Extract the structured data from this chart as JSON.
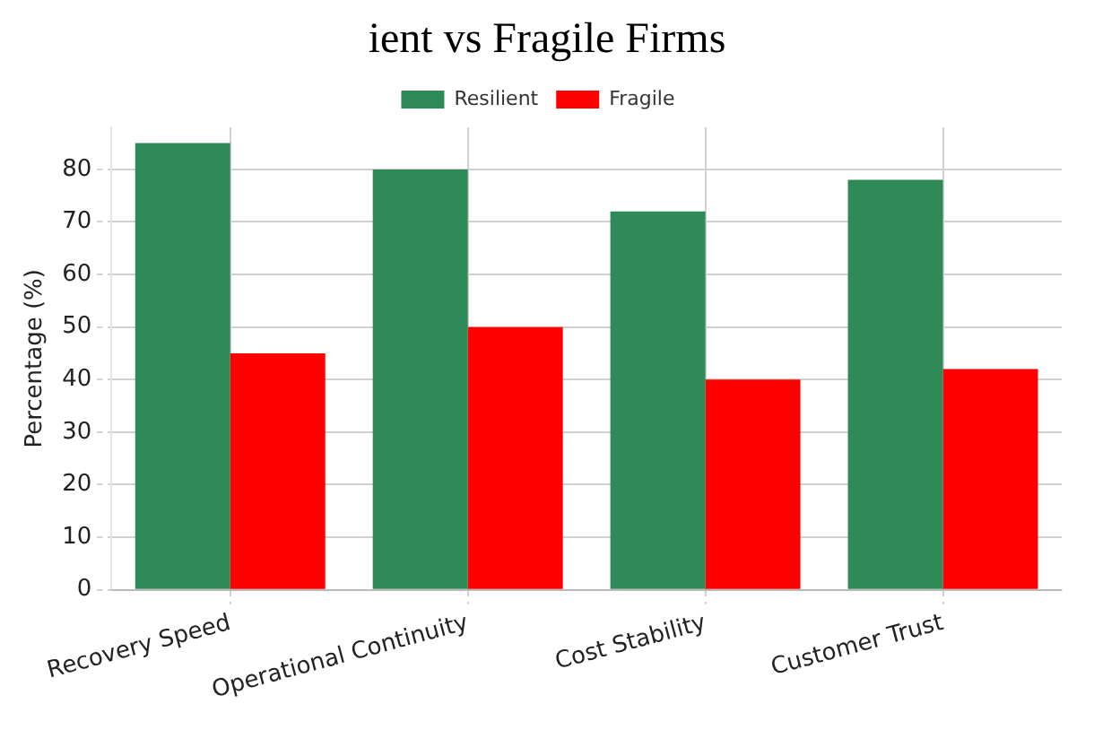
{
  "chart_data": {
    "type": "bar",
    "title": "ient vs Fragile Firms",
    "ylabel": "Percentage (%)",
    "categories": [
      "Recovery Speed",
      "Operational Continuity",
      "Cost Stability",
      "Customer Trust"
    ],
    "series": [
      {
        "name": "Resilient",
        "color": "#2e8b57",
        "values": [
          85,
          80,
          72,
          78
        ]
      },
      {
        "name": "Fragile",
        "color": "#ff0000",
        "values": [
          45,
          50,
          40,
          42
        ]
      }
    ],
    "ylim": [
      0,
      88
    ],
    "yticks": [
      0,
      10,
      20,
      30,
      40,
      50,
      60,
      70,
      80
    ],
    "grid": true,
    "legend": "top"
  }
}
